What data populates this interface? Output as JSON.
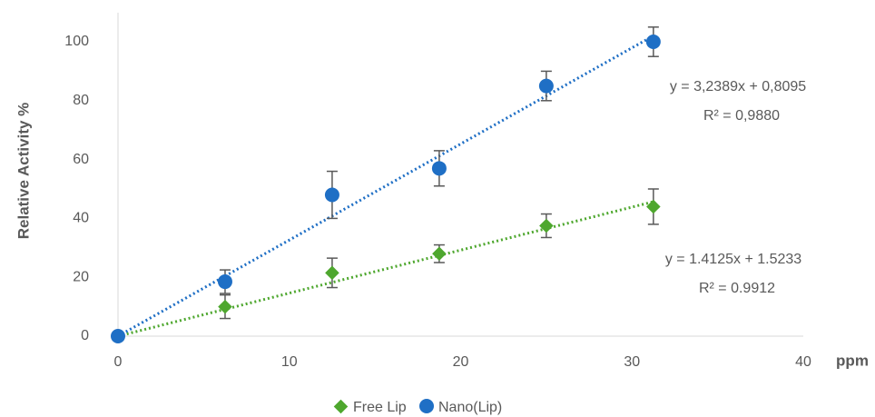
{
  "chart_data": {
    "type": "scatter",
    "xlabel": "ppm",
    "ylabel": "Relative Activity %",
    "xlim": [
      0,
      40
    ],
    "ylim": [
      0,
      100
    ],
    "x_ticks": [
      0,
      10,
      20,
      30,
      40
    ],
    "y_ticks": [
      0,
      20,
      40,
      60,
      80,
      100
    ],
    "x_tick_labels": [
      "0",
      "10",
      "20",
      "30",
      "40"
    ],
    "y_tick_labels": [
      "0",
      "20",
      "40",
      "60",
      "80",
      "100"
    ],
    "grid": false,
    "legend_position": "bottom",
    "series": [
      {
        "name": "Free Lip",
        "marker": "diamond",
        "color": "#4EA72E",
        "x": [
          0,
          6.25,
          12.5,
          18.75,
          25,
          31.25
        ],
        "y": [
          0,
          10,
          21.5,
          28,
          37.5,
          44
        ],
        "error": [
          0,
          4,
          5,
          3,
          4,
          6
        ],
        "trendline": {
          "slope": 1.4125,
          "intercept": 1.5233,
          "equation": "y = 1.4125x + 1.5233",
          "r2": "R² = 0.9912"
        }
      },
      {
        "name": "Nano(Lip)",
        "marker": "circle",
        "color": "#1F6FC5",
        "x": [
          0,
          6.25,
          12.5,
          18.75,
          25,
          31.25
        ],
        "y": [
          0,
          18.5,
          48,
          57,
          85,
          100
        ],
        "error": [
          0,
          4,
          8,
          6,
          5,
          5
        ],
        "trendline": {
          "slope": 3.2389,
          "intercept": 0.8095,
          "equation": "y = 3,2389x + 0,8095",
          "r2": "R² = 0,9880"
        }
      }
    ]
  }
}
